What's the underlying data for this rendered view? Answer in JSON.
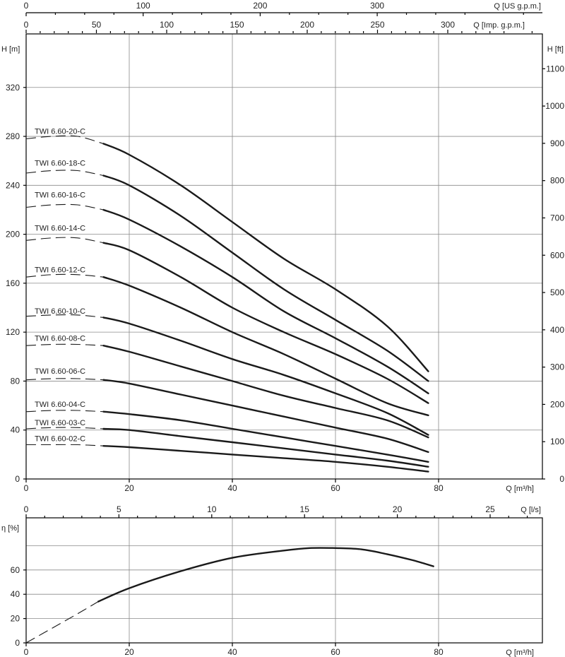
{
  "chart_data": [
    {
      "type": "line",
      "panel": "head",
      "title": "",
      "ylabel_left": "H [m]",
      "ylabel_right": "H [ft]",
      "xlabel": "Q [m³/h]",
      "xlabel_top1": "Q [US g.p.m.]",
      "xlabel_top2": "Q [Imp. g.p.m.]",
      "xlim": [
        0,
        100
      ],
      "ylim": [
        0,
        360
      ],
      "x_ticks": [
        0,
        20,
        40,
        60,
        80
      ],
      "y_ticks": [
        0,
        40,
        80,
        120,
        160,
        200,
        240,
        280,
        320
      ],
      "ft_ticks": [
        0,
        100,
        200,
        300,
        400,
        500,
        600,
        700,
        800,
        900,
        1000,
        1100
      ],
      "us_gpm_ticks": [
        0,
        100,
        200,
        300
      ],
      "imp_gpm_ticks": [
        0,
        50,
        100,
        150,
        200,
        250,
        300
      ],
      "grid": true,
      "series": [
        {
          "name": "TWI 6.60-20-C",
          "label_y": 282,
          "dashed": [
            [
              0,
              278
            ],
            [
              5,
              280
            ],
            [
              10,
              280
            ],
            [
              15,
              274
            ]
          ],
          "points": [
            [
              15,
              274
            ],
            [
              20,
              265
            ],
            [
              30,
              240
            ],
            [
              40,
              210
            ],
            [
              50,
              180
            ],
            [
              60,
              155
            ],
            [
              70,
              125
            ],
            [
              78,
              88
            ]
          ]
        },
        {
          "name": "TWI 6.60-18-C",
          "label_y": 256,
          "dashed": [
            [
              0,
              250
            ],
            [
              5,
              252
            ],
            [
              10,
              252
            ],
            [
              15,
              248
            ]
          ],
          "points": [
            [
              15,
              248
            ],
            [
              20,
              240
            ],
            [
              30,
              215
            ],
            [
              40,
              185
            ],
            [
              50,
              155
            ],
            [
              60,
              130
            ],
            [
              70,
              105
            ],
            [
              78,
              80
            ]
          ]
        },
        {
          "name": "TWI 6.60-16-C",
          "label_y": 230,
          "dashed": [
            [
              0,
              222
            ],
            [
              5,
              224
            ],
            [
              10,
              224
            ],
            [
              15,
              220
            ]
          ],
          "points": [
            [
              15,
              220
            ],
            [
              20,
              212
            ],
            [
              30,
              190
            ],
            [
              40,
              165
            ],
            [
              50,
              137
            ],
            [
              60,
              115
            ],
            [
              70,
              92
            ],
            [
              78,
              70
            ]
          ]
        },
        {
          "name": "TWI 6.60-14-C",
          "label_y": 203,
          "dashed": [
            [
              0,
              195
            ],
            [
              5,
              197
            ],
            [
              10,
              197
            ],
            [
              15,
              193
            ]
          ],
          "points": [
            [
              15,
              193
            ],
            [
              20,
              187
            ],
            [
              30,
              165
            ],
            [
              40,
              140
            ],
            [
              50,
              120
            ],
            [
              60,
              102
            ],
            [
              70,
              82
            ],
            [
              78,
              62
            ]
          ]
        },
        {
          "name": "TWI 6.60-12-C",
          "label_y": 169,
          "dashed": [
            [
              0,
              165
            ],
            [
              5,
              167
            ],
            [
              10,
              167
            ],
            [
              15,
              165
            ]
          ],
          "points": [
            [
              15,
              165
            ],
            [
              20,
              158
            ],
            [
              30,
              140
            ],
            [
              40,
              120
            ],
            [
              50,
              102
            ],
            [
              60,
              82
            ],
            [
              70,
              62
            ],
            [
              78,
              52
            ]
          ]
        },
        {
          "name": "TWI 6.60-10-C",
          "label_y": 135,
          "dashed": [
            [
              0,
              133
            ],
            [
              5,
              134
            ],
            [
              10,
              134
            ],
            [
              15,
              132
            ]
          ],
          "points": [
            [
              15,
              132
            ],
            [
              20,
              127
            ],
            [
              30,
              113
            ],
            [
              40,
              98
            ],
            [
              50,
              85
            ],
            [
              60,
              70
            ],
            [
              70,
              54
            ],
            [
              78,
              36
            ]
          ]
        },
        {
          "name": "TWI 6.60-08-C",
          "label_y": 113,
          "dashed": [
            [
              0,
              109
            ],
            [
              5,
              110
            ],
            [
              10,
              110
            ],
            [
              15,
              109
            ]
          ],
          "points": [
            [
              15,
              109
            ],
            [
              20,
              104
            ],
            [
              30,
              92
            ],
            [
              40,
              80
            ],
            [
              50,
              68
            ],
            [
              60,
              58
            ],
            [
              70,
              48
            ],
            [
              78,
              34
            ]
          ]
        },
        {
          "name": "TWI 6.60-06-C",
          "label_y": 86,
          "dashed": [
            [
              0,
              81
            ],
            [
              5,
              82
            ],
            [
              10,
              82
            ],
            [
              15,
              81
            ]
          ],
          "points": [
            [
              15,
              81
            ],
            [
              20,
              78
            ],
            [
              30,
              69
            ],
            [
              40,
              60
            ],
            [
              50,
              51
            ],
            [
              60,
              42
            ],
            [
              70,
              33
            ],
            [
              78,
              22
            ]
          ]
        },
        {
          "name": "TWI 6.60-04-C",
          "label_y": 59,
          "dashed": [
            [
              0,
              55
            ],
            [
              5,
              56
            ],
            [
              10,
              56
            ],
            [
              15,
              55
            ]
          ],
          "points": [
            [
              15,
              55
            ],
            [
              20,
              53
            ],
            [
              30,
              48
            ],
            [
              40,
              41
            ],
            [
              50,
              34
            ],
            [
              60,
              27
            ],
            [
              70,
              20
            ],
            [
              78,
              14
            ]
          ]
        },
        {
          "name": "TWI 6.60-03-C",
          "label_y": 44,
          "dashed": [
            [
              0,
              41
            ],
            [
              5,
              42
            ],
            [
              10,
              42
            ],
            [
              15,
              41
            ]
          ],
          "points": [
            [
              15,
              41
            ],
            [
              20,
              40
            ],
            [
              30,
              35
            ],
            [
              40,
              30
            ],
            [
              50,
              25
            ],
            [
              60,
              20
            ],
            [
              70,
              15
            ],
            [
              78,
              10
            ]
          ]
        },
        {
          "name": "TWI 6.60-02-C",
          "label_y": 31,
          "dashed": [
            [
              0,
              28
            ],
            [
              5,
              28
            ],
            [
              10,
              28
            ],
            [
              15,
              27
            ]
          ],
          "points": [
            [
              15,
              27
            ],
            [
              20,
              26
            ],
            [
              30,
              23
            ],
            [
              40,
              20
            ],
            [
              50,
              17
            ],
            [
              60,
              14
            ],
            [
              70,
              10
            ],
            [
              78,
              6
            ]
          ]
        }
      ]
    },
    {
      "type": "line",
      "panel": "efficiency",
      "title": "",
      "ylabel": "η [%]",
      "xlabel": "Q [m³/h]",
      "xlabel_top": "Q [l/s]",
      "xlim": [
        0,
        100
      ],
      "ylim": [
        0,
        90
      ],
      "x_ticks": [
        0,
        20,
        40,
        60,
        80
      ],
      "y_ticks": [
        0,
        20,
        40,
        60
      ],
      "ls_ticks": [
        0,
        5,
        10,
        15,
        20,
        25
      ],
      "grid": true,
      "series": [
        {
          "name": "",
          "dashed": [
            [
              0,
              0
            ],
            [
              5,
              12
            ],
            [
              10,
              24
            ],
            [
              14,
              34
            ]
          ],
          "points": [
            [
              14,
              34
            ],
            [
              20,
              45
            ],
            [
              30,
              59
            ],
            [
              40,
              70
            ],
            [
              50,
              76
            ],
            [
              55,
              78
            ],
            [
              60,
              78
            ],
            [
              65,
              77
            ],
            [
              70,
              73
            ],
            [
              75,
              68
            ],
            [
              79,
              63
            ]
          ]
        }
      ]
    }
  ]
}
